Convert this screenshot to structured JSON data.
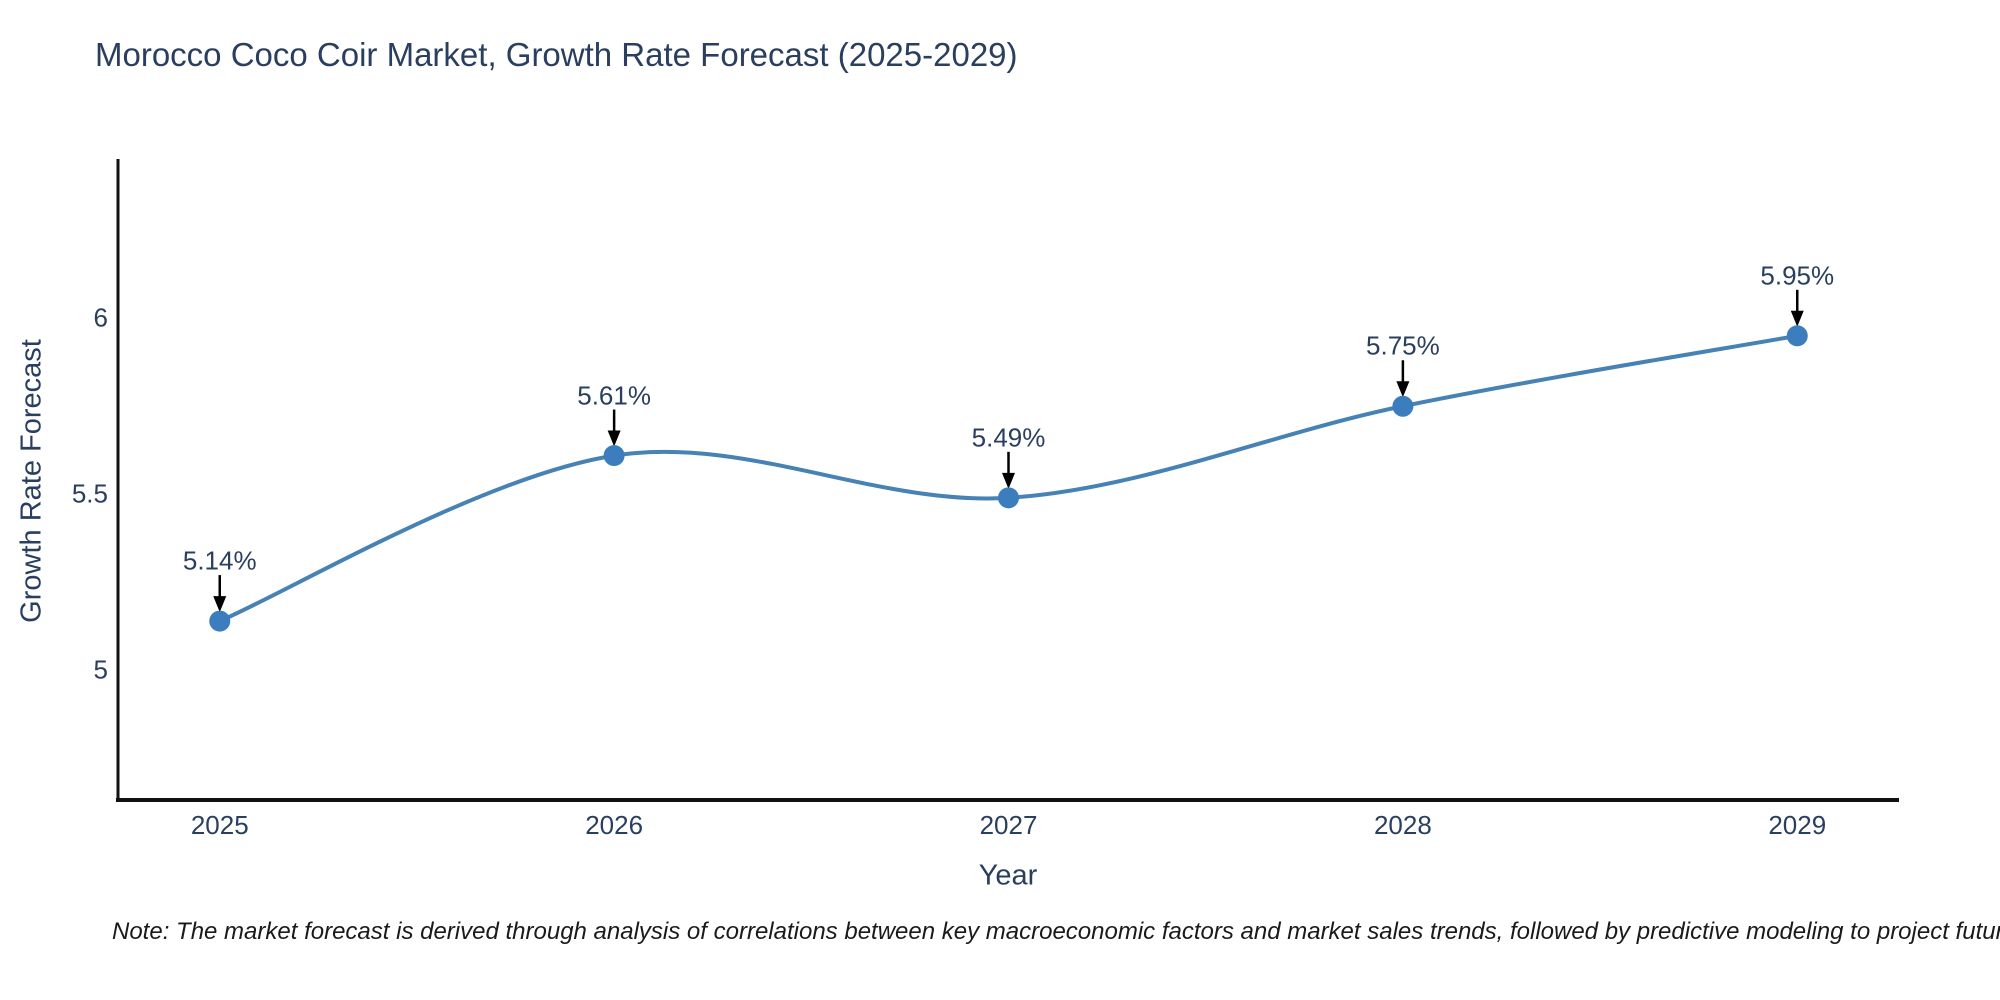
{
  "title": "Morocco Coco Coir Market, Growth Rate Forecast (2025-2029)",
  "note": "Note: The market forecast is derived through analysis of correlations between key macroeconomic factors and market sales trends, followed by predictive modeling to project future sales",
  "chart_data": {
    "type": "line",
    "title": "Morocco Coco Coir Market, Growth Rate Forecast (2025-2029)",
    "xlabel": "Year",
    "ylabel": "Growth Rate Forecast",
    "x": [
      2025,
      2026,
      2027,
      2028,
      2029
    ],
    "series": [
      {
        "name": "Growth Rate Forecast",
        "values": [
          5.14,
          5.61,
          5.49,
          5.75,
          5.95
        ]
      }
    ],
    "point_labels": [
      "5.14%",
      "5.61%",
      "5.49%",
      "5.75%",
      "5.95%"
    ],
    "x_tick_labels": [
      "2025",
      "2026",
      "2027",
      "2028",
      "2029"
    ],
    "y_ticks": [
      5,
      5.5,
      6
    ],
    "y_tick_labels": [
      "5",
      "5.5",
      "6"
    ],
    "xlim": [
      2024.742,
      2029.258
    ],
    "ylim": [
      4.632,
      6.452
    ],
    "line_shape": "spline",
    "grid": false,
    "legend": "none",
    "colors": {
      "line": "#4682b4",
      "marker": "#3b7dbd",
      "axis": "#111111",
      "text": "#2a3f5f",
      "arrow": "#000000",
      "background": "#ffffff"
    }
  }
}
